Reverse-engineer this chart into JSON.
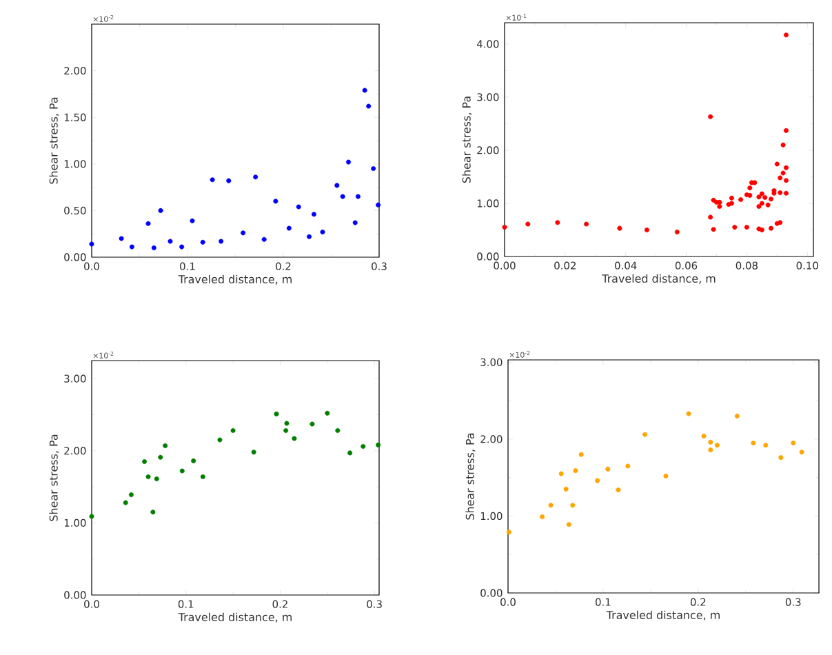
{
  "chart_data": [
    {
      "type": "scatter",
      "xlabel": "Traveled distance, m",
      "ylabel": "Shear stress, Pa",
      "annotations": [
        "×10$^{-2}$"
      ],
      "marker": "circle",
      "color": "#0000ff",
      "x": [
        0,
        0.031,
        0.042,
        0.059,
        0.065,
        0.072,
        0.082,
        0.094,
        0.105,
        0.116,
        0.126,
        0.135,
        0.143,
        0.158,
        0.171,
        0.18,
        0.192,
        0.206,
        0.216,
        0.227,
        0.232,
        0.241,
        0.256,
        0.262,
        0.268,
        0.275,
        0.278,
        0.285,
        0.289,
        0.294,
        0.299
      ],
      "values": [
        0.14,
        0.2,
        0.11,
        0.36,
        0.1,
        0.5,
        0.17,
        0.11,
        0.39,
        0.16,
        0.83,
        0.17,
        0.82,
        0.26,
        0.86,
        0.19,
        0.6,
        0.31,
        0.54,
        0.22,
        0.46,
        0.27,
        0.77,
        0.65,
        1.02,
        0.37,
        0.65,
        1.79,
        1.62,
        0.95,
        0.56
      ],
      "xlim": [
        0,
        0.3
      ],
      "ylim": [
        0,
        2.5
      ],
      "xticks": [
        {
          "value": 0,
          "label": "0.0"
        },
        {
          "value": 0.1,
          "label": "0.1"
        },
        {
          "value": 0.2,
          "label": "0.2"
        },
        {
          "value": 0.3,
          "label": "0.3"
        }
      ],
      "yticks": [
        {
          "value": 0,
          "label": "0.00"
        },
        {
          "value": 0.5,
          "label": "0.50"
        },
        {
          "value": 1,
          "label": "1.00"
        },
        {
          "value": 1.5,
          "label": "1.50"
        },
        {
          "value": 2,
          "label": "2.00"
        }
      ]
    },
    {
      "type": "scatter",
      "xlabel": "Traveled distance, m",
      "ylabel": "Shear stress, Pa",
      "annotations": [
        "×10$^{-1}$"
      ],
      "marker": "circle",
      "color": "#ff0000",
      "x": [
        0,
        0.0077,
        0.0175,
        0.027,
        0.038,
        0.047,
        0.057,
        0.069,
        0.076,
        0.08,
        0.084,
        0.085,
        0.088,
        0.09,
        0.091,
        0.068,
        0.068,
        0.069,
        0.07,
        0.071,
        0.071,
        0.074,
        0.075,
        0.075,
        0.078,
        0.08,
        0.081,
        0.0816,
        0.0826,
        0.081,
        0.084,
        0.084,
        0.085,
        0.085,
        0.086,
        0.087,
        0.088,
        0.089,
        0.089,
        0.09,
        0.091,
        0.091,
        0.092,
        0.092,
        0.093,
        0.093,
        0.093,
        0.093,
        0.093
      ],
      "values": [
        0.55,
        0.61,
        0.64,
        0.61,
        0.53,
        0.5,
        0.46,
        0.51,
        0.55,
        0.55,
        0.52,
        0.5,
        0.53,
        0.62,
        0.64,
        2.63,
        0.74,
        1.06,
        1.02,
        0.94,
        1.02,
        0.98,
        1.1,
        1,
        1.07,
        1.16,
        1.29,
        1.39,
        1.39,
        1.15,
        0.94,
        1.12,
        1,
        1.18,
        1.11,
        0.97,
        1.08,
        1.19,
        1.24,
        1.74,
        1.2,
        1.48,
        1.57,
        2.1,
        1.67,
        2.37,
        4.17,
        1.43,
        1.19
      ],
      "xlim": [
        0,
        0.102
      ],
      "ylim": [
        0,
        4.4
      ],
      "xticks": [
        {
          "value": 0,
          "label": "0.00"
        },
        {
          "value": 0.02,
          "label": "0.02"
        },
        {
          "value": 0.04,
          "label": "0.04"
        },
        {
          "value": 0.06,
          "label": "0.06"
        },
        {
          "value": 0.08,
          "label": "0.08"
        },
        {
          "value": 0.1,
          "label": "0.10"
        }
      ],
      "yticks": [
        {
          "value": 0,
          "label": "0.00"
        },
        {
          "value": 1,
          "label": "1.00"
        },
        {
          "value": 2,
          "label": "2.00"
        },
        {
          "value": 3,
          "label": "3.00"
        },
        {
          "value": 4,
          "label": "4.00"
        }
      ]
    },
    {
      "type": "scatter",
      "xlabel": "Traveled distance, m",
      "ylabel": "Shear stress, Pa",
      "annotations": [
        "×10$^{-2}$"
      ],
      "marker": "circle",
      "color": "#007f00",
      "x": [
        0,
        0.036,
        0.042,
        0.056,
        0.06,
        0.065,
        0.069,
        0.073,
        0.078,
        0.096,
        0.108,
        0.118,
        0.136,
        0.15,
        0.172,
        0.196,
        0.207,
        0.206,
        0.215,
        0.234,
        0.25,
        0.261,
        0.274,
        0.288,
        0.304
      ],
      "values": [
        1.09,
        1.28,
        1.39,
        1.85,
        1.64,
        1.15,
        1.61,
        1.91,
        2.07,
        1.72,
        1.86,
        1.64,
        2.15,
        2.28,
        1.98,
        2.51,
        2.38,
        2.28,
        2.17,
        2.37,
        2.52,
        2.28,
        1.97,
        2.06,
        2.08
      ],
      "xlim": [
        0,
        0.305
      ],
      "ylim": [
        0,
        3.25
      ],
      "xticks": [
        {
          "value": 0,
          "label": "0.0"
        },
        {
          "value": 0.1,
          "label": "0.1"
        },
        {
          "value": 0.2,
          "label": "0.2"
        },
        {
          "value": 0.3,
          "label": "0.3"
        }
      ],
      "yticks": [
        {
          "value": 0,
          "label": "0.00"
        },
        {
          "value": 1,
          "label": "1.00"
        },
        {
          "value": 2,
          "label": "2.00"
        },
        {
          "value": 3,
          "label": "3.00"
        }
      ]
    },
    {
      "type": "scatter",
      "xlabel": "Traveled distance, m",
      "ylabel": "Shear stress, Pa",
      "annotations": [
        "×10$^{-2}$"
      ],
      "marker": "circle",
      "color": "#ffa500",
      "x": [
        0.001,
        0.036,
        0.045,
        0.056,
        0.061,
        0.064,
        0.068,
        0.071,
        0.077,
        0.094,
        0.105,
        0.116,
        0.126,
        0.144,
        0.166,
        0.19,
        0.206,
        0.213,
        0.213,
        0.22,
        0.241,
        0.258,
        0.271,
        0.287,
        0.3,
        0.309
      ],
      "values": [
        0.79,
        0.99,
        1.14,
        1.55,
        1.35,
        0.89,
        1.14,
        1.59,
        1.8,
        1.46,
        1.61,
        1.34,
        1.65,
        2.06,
        1.52,
        2.33,
        2.04,
        1.96,
        1.86,
        1.92,
        2.3,
        1.95,
        1.92,
        1.76,
        1.95,
        1.83
      ],
      "xlim": [
        0,
        0.327
      ],
      "ylim": [
        0,
        3.03
      ],
      "xticks": [
        {
          "value": 0,
          "label": "0.0"
        },
        {
          "value": 0.1,
          "label": "0.1"
        },
        {
          "value": 0.2,
          "label": "0.2"
        },
        {
          "value": 0.3,
          "label": "0.3"
        }
      ],
      "yticks": [
        {
          "value": 0,
          "label": "0.00"
        },
        {
          "value": 1,
          "label": "1.00"
        },
        {
          "value": 2,
          "label": "2.00"
        },
        {
          "value": 3,
          "label": "3.00"
        }
      ]
    }
  ]
}
